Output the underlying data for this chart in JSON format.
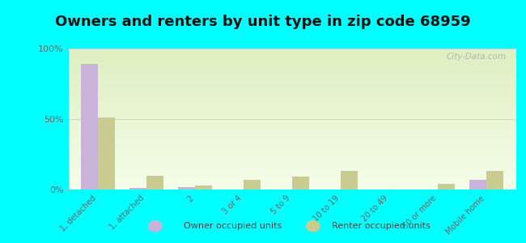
{
  "title": "Owners and renters by unit type in zip code 68959",
  "categories": [
    "1, detached",
    "1, attached",
    "2",
    "3 or 4",
    "5 to 9",
    "10 to 19",
    "20 to 49",
    "50 or more",
    "Mobile home"
  ],
  "owner_values": [
    89,
    1,
    2,
    0,
    0,
    0,
    0,
    0,
    7
  ],
  "renter_values": [
    51,
    10,
    3,
    7,
    9,
    13,
    0,
    4,
    13
  ],
  "owner_color": "#c9b3d9",
  "renter_color": "#c8cc8e",
  "background_color": "#00ffff",
  "ylim": [
    0,
    100
  ],
  "yticks": [
    0,
    50,
    100
  ],
  "ytick_labels": [
    "0%",
    "50%",
    "100%"
  ],
  "legend_owner": "Owner occupied units",
  "legend_renter": "Renter occupied units",
  "title_fontsize": 13,
  "bar_width": 0.35,
  "watermark": "City-Data.com"
}
